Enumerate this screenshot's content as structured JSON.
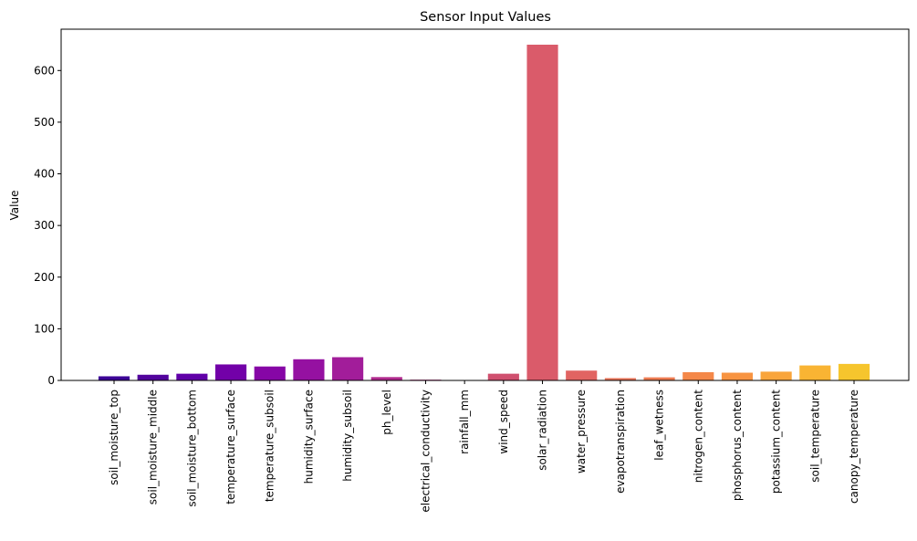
{
  "chart_data": {
    "type": "bar",
    "title": "Sensor Input Values",
    "xlabel": "",
    "ylabel": "Value",
    "ylim": [
      0,
      680
    ],
    "yticks": [
      0,
      100,
      200,
      300,
      400,
      500,
      600
    ],
    "grid": false,
    "categories": [
      "soil_moisture_top",
      "soil_moisture_middle",
      "soil_moisture_bottom",
      "temperature_surface",
      "temperature_subsoil",
      "humidity_surface",
      "humidity_subsoil",
      "ph_level",
      "electrical_conductivity",
      "rainfall_mm",
      "wind_speed",
      "solar_radiation",
      "water_pressure",
      "evapotranspiration",
      "leaf_wetness",
      "nitrogen_content",
      "phosphorus_content",
      "potassium_content",
      "soil_temperature",
      "canopy_temperature"
    ],
    "values": [
      8,
      11,
      13,
      31,
      27,
      41,
      45,
      6.5,
      1.5,
      0,
      13,
      650,
      19,
      4.5,
      6,
      16,
      15,
      17,
      29,
      32
    ],
    "colors": [
      "#3c0397",
      "#52049d",
      "#6000a8",
      "#7201a8",
      "#8606a6",
      "#9511a1",
      "#a21d9a",
      "#b12b8f",
      "#bc3587",
      "#c9437c",
      "#d0506f",
      "#da5b6a",
      "#e16462",
      "#e97257",
      "#ee7b51",
      "#f48849",
      "#f89441",
      "#f9a53b",
      "#f9b433",
      "#f6c52d"
    ]
  }
}
